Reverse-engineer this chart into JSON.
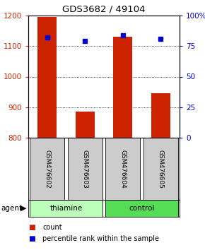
{
  "title": "GDS3682 / 49104",
  "samples": [
    "GSM476602",
    "GSM476603",
    "GSM476604",
    "GSM476605"
  ],
  "counts": [
    1195,
    885,
    1130,
    945
  ],
  "percentiles": [
    82,
    79,
    84,
    81
  ],
  "ylim_left": [
    800,
    1200
  ],
  "ylim_right": [
    0,
    100
  ],
  "yticks_left": [
    800,
    900,
    1000,
    1100,
    1200
  ],
  "yticks_right": [
    0,
    25,
    50,
    75,
    100
  ],
  "yticklabels_right": [
    "0",
    "25",
    "50",
    "75",
    "100%"
  ],
  "bar_color": "#cc2200",
  "dot_color": "#0000cc",
  "groups": [
    {
      "label": "thiamine",
      "indices": [
        0,
        1
      ],
      "color": "#bbffbb"
    },
    {
      "label": "control",
      "indices": [
        2,
        3
      ],
      "color": "#55dd55"
    }
  ],
  "sample_box_color": "#cccccc",
  "legend_count_color": "#cc2200",
  "legend_dot_color": "#0000cc",
  "background_color": "#ffffff"
}
